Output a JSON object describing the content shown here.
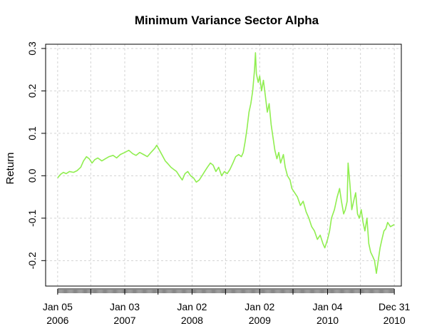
{
  "chart_data": {
    "type": "line",
    "title": "Minimum Variance Sector Alpha",
    "xlabel": "",
    "ylabel": "Return",
    "ylim": [
      -0.26,
      0.31
    ],
    "grid": true,
    "y_ticks": [
      -0.2,
      -0.1,
      0.0,
      0.1,
      0.2,
      0.3
    ],
    "y_tick_labels": [
      "-0.2",
      "-0.1",
      "0.0",
      "0.1",
      "0.2",
      "0.3"
    ],
    "x_ticks": [
      {
        "date": "2006-01-05",
        "line1": "Jan 05",
        "line2": "2006"
      },
      {
        "date": "2007-01-03",
        "line1": "Jan 03",
        "line2": "2007"
      },
      {
        "date": "2008-01-02",
        "line1": "Jan 02",
        "line2": "2008"
      },
      {
        "date": "2009-01-02",
        "line1": "Jan 02",
        "line2": "2009"
      },
      {
        "date": "2010-01-04",
        "line1": "Jan 04",
        "line2": "2010"
      },
      {
        "date": "2010-12-31",
        "line1": "Dec 31",
        "line2": "2010"
      }
    ],
    "x_grid_dates": [
      "2006-01-05",
      "2006-07-03",
      "2007-01-03",
      "2007-07-02",
      "2008-01-02",
      "2008-07-01",
      "2009-01-02",
      "2009-07-01",
      "2010-01-04",
      "2010-07-01",
      "2010-12-31"
    ],
    "xlim": [
      "2005-11-01",
      "2011-02-07"
    ],
    "series": [
      {
        "color": "#90ee50",
        "points": [
          [
            "2006-01-05",
            -0.005
          ],
          [
            "2006-01-20",
            0.003
          ],
          [
            "2006-02-05",
            0.008
          ],
          [
            "2006-02-20",
            0.005
          ],
          [
            "2006-03-10",
            0.01
          ],
          [
            "2006-04-01",
            0.008
          ],
          [
            "2006-04-20",
            0.012
          ],
          [
            "2006-05-10",
            0.02
          ],
          [
            "2006-05-25",
            0.035
          ],
          [
            "2006-06-10",
            0.045
          ],
          [
            "2006-06-25",
            0.04
          ],
          [
            "2006-07-10",
            0.03
          ],
          [
            "2006-07-25",
            0.038
          ],
          [
            "2006-08-10",
            0.042
          ],
          [
            "2006-09-01",
            0.035
          ],
          [
            "2006-09-20",
            0.04
          ],
          [
            "2006-10-10",
            0.045
          ],
          [
            "2006-11-01",
            0.048
          ],
          [
            "2006-11-20",
            0.042
          ],
          [
            "2006-12-10",
            0.05
          ],
          [
            "2007-01-03",
            0.055
          ],
          [
            "2007-01-25",
            0.06
          ],
          [
            "2007-02-15",
            0.052
          ],
          [
            "2007-03-05",
            0.048
          ],
          [
            "2007-03-25",
            0.055
          ],
          [
            "2007-04-15",
            0.05
          ],
          [
            "2007-05-05",
            0.045
          ],
          [
            "2007-05-25",
            0.055
          ],
          [
            "2007-06-15",
            0.065
          ],
          [
            "2007-06-25",
            0.072
          ],
          [
            "2007-07-10",
            0.06
          ],
          [
            "2007-07-25",
            0.048
          ],
          [
            "2007-08-10",
            0.035
          ],
          [
            "2007-08-25",
            0.028
          ],
          [
            "2007-09-10",
            0.02
          ],
          [
            "2007-09-25",
            0.015
          ],
          [
            "2007-10-10",
            0.01
          ],
          [
            "2007-10-25",
            0.0
          ],
          [
            "2007-11-10",
            -0.01
          ],
          [
            "2007-11-25",
            0.005
          ],
          [
            "2007-12-10",
            0.01
          ],
          [
            "2007-12-25",
            0.0
          ],
          [
            "2008-01-10",
            -0.005
          ],
          [
            "2008-01-25",
            -0.015
          ],
          [
            "2008-02-10",
            -0.01
          ],
          [
            "2008-02-25",
            0.0
          ],
          [
            "2008-03-10",
            0.01
          ],
          [
            "2008-03-25",
            0.02
          ],
          [
            "2008-04-10",
            0.03
          ],
          [
            "2008-04-25",
            0.025
          ],
          [
            "2008-05-10",
            0.01
          ],
          [
            "2008-05-25",
            0.02
          ],
          [
            "2008-06-10",
            0.0
          ],
          [
            "2008-06-25",
            0.01
          ],
          [
            "2008-07-10",
            0.005
          ],
          [
            "2008-07-25",
            0.015
          ],
          [
            "2008-08-10",
            0.03
          ],
          [
            "2008-08-25",
            0.045
          ],
          [
            "2008-09-10",
            0.05
          ],
          [
            "2008-09-25",
            0.045
          ],
          [
            "2008-10-05",
            0.055
          ],
          [
            "2008-10-15",
            0.08
          ],
          [
            "2008-10-25",
            0.11
          ],
          [
            "2008-11-05",
            0.15
          ],
          [
            "2008-11-15",
            0.17
          ],
          [
            "2008-11-25",
            0.2
          ],
          [
            "2008-12-05",
            0.25
          ],
          [
            "2008-12-10",
            0.29
          ],
          [
            "2008-12-15",
            0.24
          ],
          [
            "2008-12-25",
            0.22
          ],
          [
            "2009-01-02",
            0.235
          ],
          [
            "2009-01-12",
            0.2
          ],
          [
            "2009-01-22",
            0.225
          ],
          [
            "2009-02-01",
            0.19
          ],
          [
            "2009-02-12",
            0.15
          ],
          [
            "2009-02-22",
            0.17
          ],
          [
            "2009-03-05",
            0.12
          ],
          [
            "2009-03-15",
            0.09
          ],
          [
            "2009-03-25",
            0.06
          ],
          [
            "2009-04-05",
            0.04
          ],
          [
            "2009-04-15",
            0.055
          ],
          [
            "2009-04-25",
            0.03
          ],
          [
            "2009-05-10",
            0.05
          ],
          [
            "2009-05-20",
            0.02
          ],
          [
            "2009-06-01",
            0.0
          ],
          [
            "2009-06-15",
            -0.01
          ],
          [
            "2009-06-25",
            -0.03
          ],
          [
            "2009-07-10",
            -0.04
          ],
          [
            "2009-07-25",
            -0.05
          ],
          [
            "2009-08-10",
            -0.07
          ],
          [
            "2009-08-25",
            -0.06
          ],
          [
            "2009-09-10",
            -0.085
          ],
          [
            "2009-09-25",
            -0.1
          ],
          [
            "2009-10-10",
            -0.12
          ],
          [
            "2009-10-25",
            -0.13
          ],
          [
            "2009-11-10",
            -0.15
          ],
          [
            "2009-11-25",
            -0.14
          ],
          [
            "2009-12-10",
            -0.16
          ],
          [
            "2009-12-20",
            -0.17
          ],
          [
            "2010-01-04",
            -0.15
          ],
          [
            "2010-01-15",
            -0.13
          ],
          [
            "2010-01-25",
            -0.1
          ],
          [
            "2010-02-10",
            -0.08
          ],
          [
            "2010-02-25",
            -0.05
          ],
          [
            "2010-03-10",
            -0.03
          ],
          [
            "2010-03-20",
            -0.06
          ],
          [
            "2010-04-01",
            -0.09
          ],
          [
            "2010-04-10",
            -0.08
          ],
          [
            "2010-04-20",
            -0.06
          ],
          [
            "2010-04-25",
            0.03
          ],
          [
            "2010-05-05",
            -0.02
          ],
          [
            "2010-05-15",
            -0.08
          ],
          [
            "2010-05-25",
            -0.06
          ],
          [
            "2010-06-05",
            -0.04
          ],
          [
            "2010-06-15",
            -0.09
          ],
          [
            "2010-06-25",
            -0.1
          ],
          [
            "2010-07-05",
            -0.08
          ],
          [
            "2010-07-15",
            -0.11
          ],
          [
            "2010-07-25",
            -0.13
          ],
          [
            "2010-08-05",
            -0.1
          ],
          [
            "2010-08-15",
            -0.16
          ],
          [
            "2010-08-25",
            -0.18
          ],
          [
            "2010-09-05",
            -0.19
          ],
          [
            "2010-09-15",
            -0.2
          ],
          [
            "2010-09-25",
            -0.23
          ],
          [
            "2010-10-05",
            -0.2
          ],
          [
            "2010-10-15",
            -0.17
          ],
          [
            "2010-10-25",
            -0.15
          ],
          [
            "2010-11-05",
            -0.13
          ],
          [
            "2010-11-15",
            -0.125
          ],
          [
            "2010-11-25",
            -0.11
          ],
          [
            "2010-12-10",
            -0.12
          ],
          [
            "2010-12-31",
            -0.115
          ]
        ]
      }
    ]
  }
}
